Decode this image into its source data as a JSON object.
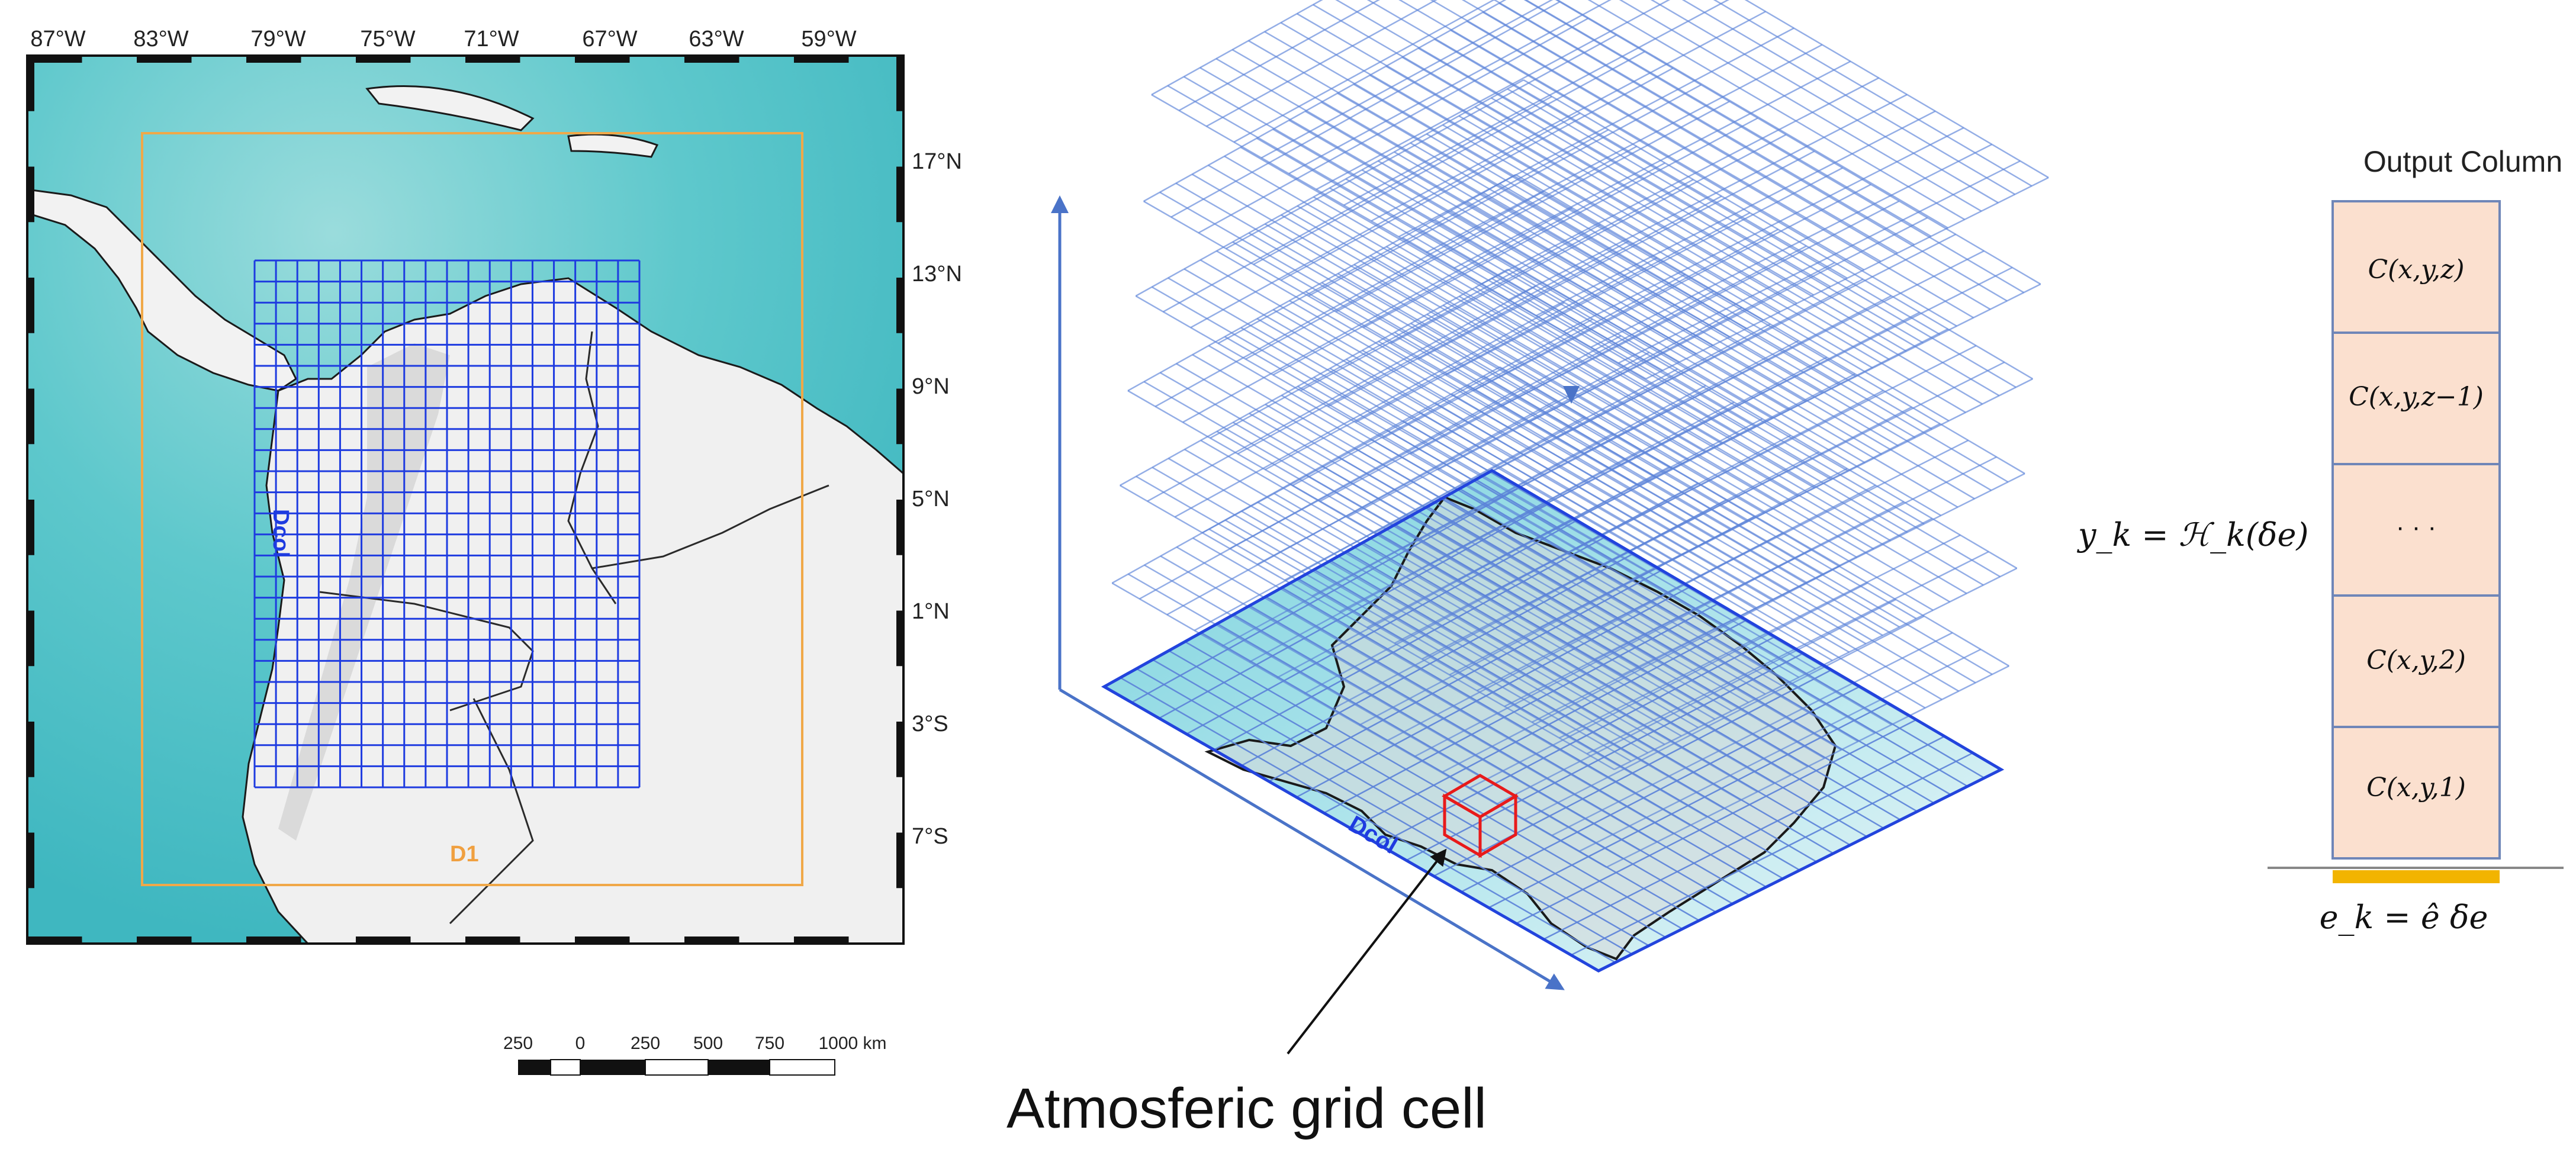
{
  "map": {
    "top_lon_labels": [
      "87°W",
      "83°W",
      "79°W",
      "75°W",
      "71°W",
      "67°W",
      "63°W",
      "59°W"
    ],
    "right_lat_labels": [
      "17°N",
      "13°N",
      "9°N",
      "5°N",
      "1°N",
      "3°S",
      "7°S"
    ],
    "domain_outer_label": "D1",
    "domain_inner_label": "Dcol",
    "colors": {
      "ocean": "#5ec8cc",
      "ocean_deep": "#8fd6d8",
      "land": "#f2f2f2",
      "outer_domain": "#f0a848",
      "inner_grid": "#1e3be0",
      "coastline": "#1a1a1a"
    }
  },
  "scale_bar": {
    "labels": [
      "250",
      "0",
      "250",
      "500",
      "750",
      "1000 km"
    ]
  },
  "grid3d": {
    "domain_label": "Dcol",
    "callout": "Atmosferic grid cell",
    "colors": {
      "grid": "#5b82d8",
      "axis": "#4a73c8",
      "cell": "#e81a1a",
      "base_fill": "#7fd4e0"
    }
  },
  "equation": {
    "observation": "y_k = ℋ_k(δe)"
  },
  "column": {
    "title": "Output Column",
    "cells": [
      {
        "label": "C(x,y,z)"
      },
      {
        "label": "C(x,y,z−1)"
      },
      {
        "label": "· · ·"
      },
      {
        "label": "C(x,y,2)"
      },
      {
        "label": "C(x,y,1)"
      }
    ],
    "emission": "e_k = ê δe",
    "colors": {
      "fill": "#fbe0cf",
      "border": "#6f86b8",
      "base": "#f2b400"
    }
  }
}
